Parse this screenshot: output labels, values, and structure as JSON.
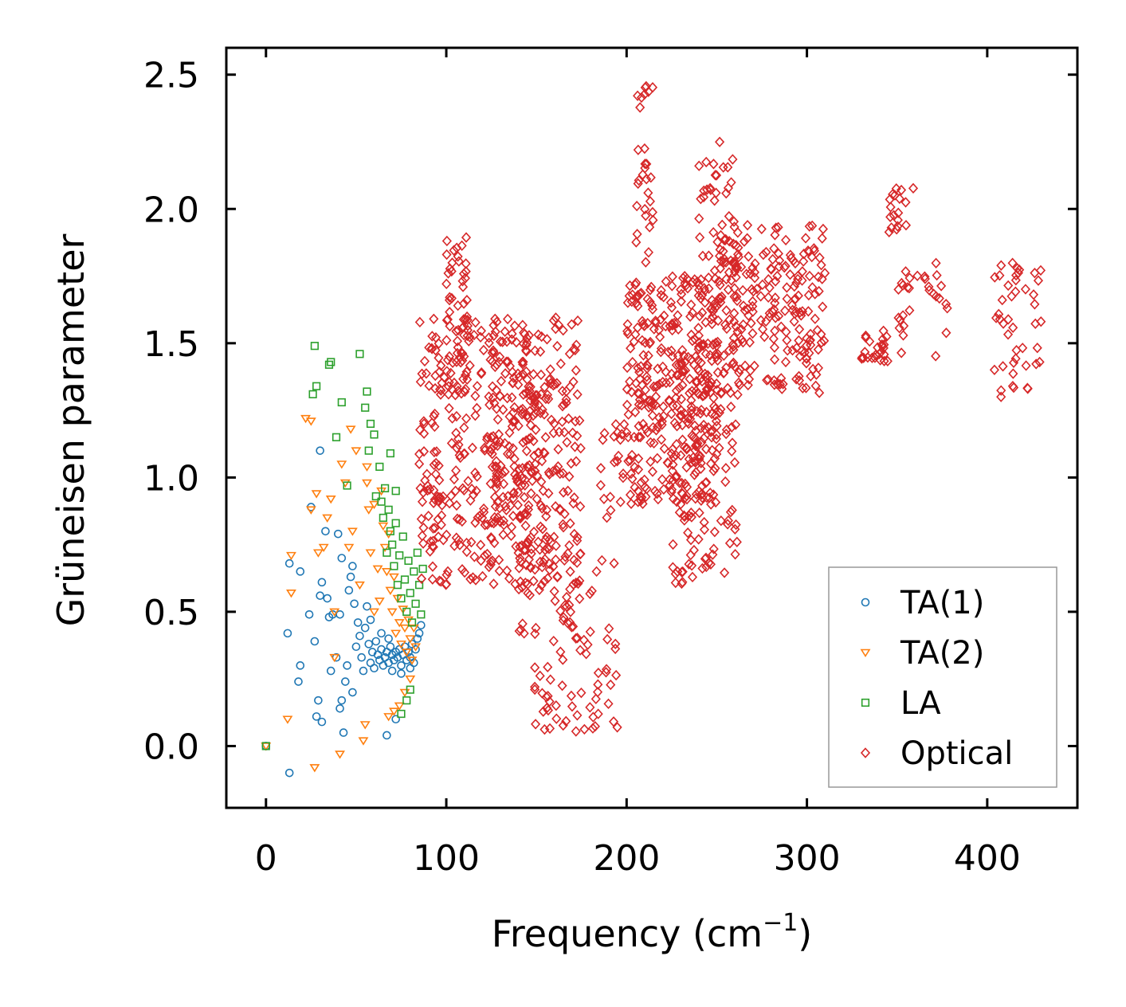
{
  "chart_data": {
    "type": "scatter",
    "title": "",
    "xlabel": "Frequency (cm",
    "xlabel_sup": "−1",
    "xlabel_close": ")",
    "ylabel": "Grüneisen parameter",
    "xlim": [
      -22,
      450
    ],
    "ylim": [
      -0.23,
      2.6
    ],
    "xticks": [
      0,
      100,
      200,
      300,
      400
    ],
    "yticks": [
      0.0,
      0.5,
      1.0,
      1.5,
      2.0,
      2.5
    ],
    "xtick_labels": [
      "0",
      "100",
      "200",
      "300",
      "400"
    ],
    "ytick_labels": [
      "0.0",
      "0.5",
      "1.0",
      "1.5",
      "2.0",
      "2.5"
    ],
    "legend_position": "lower-right",
    "series": [
      {
        "name": "TA(1)",
        "color": "#1f77b4",
        "marker": "circle",
        "points": [
          [
            0,
            0
          ],
          [
            13,
            -0.1
          ],
          [
            12,
            0.42
          ],
          [
            18,
            0.24
          ],
          [
            19,
            0.3
          ],
          [
            13,
            0.68
          ],
          [
            19,
            0.65
          ],
          [
            25,
            0.89
          ],
          [
            30,
            1.1
          ],
          [
            24,
            0.49
          ],
          [
            27,
            0.39
          ],
          [
            29,
            0.17
          ],
          [
            28,
            0.11
          ],
          [
            31,
            0.09
          ],
          [
            30,
            0.56
          ],
          [
            31,
            0.61
          ],
          [
            33,
            0.8
          ],
          [
            35,
            0.48
          ],
          [
            34,
            0.55
          ],
          [
            36,
            0.28
          ],
          [
            37,
            0.49
          ],
          [
            39,
            0.33
          ],
          [
            40,
            0.79
          ],
          [
            41,
            0.14
          ],
          [
            42,
            0.17
          ],
          [
            41,
            0.49
          ],
          [
            43,
            0.05
          ],
          [
            42,
            0.7
          ],
          [
            44,
            0.24
          ],
          [
            45,
            0.3
          ],
          [
            46,
            0.58
          ],
          [
            47,
            0.63
          ],
          [
            48,
            0.67
          ],
          [
            48,
            0.2
          ],
          [
            49,
            0.53
          ],
          [
            50,
            0.37
          ],
          [
            51,
            0.46
          ],
          [
            52,
            0.41
          ],
          [
            53,
            0.33
          ],
          [
            54,
            0.28
          ],
          [
            55,
            0.44
          ],
          [
            56,
            0.52
          ],
          [
            57,
            0.38
          ],
          [
            58,
            0.31
          ],
          [
            59,
            0.35
          ],
          [
            60,
            0.29
          ],
          [
            61,
            0.39
          ],
          [
            62,
            0.34
          ],
          [
            63,
            0.32
          ],
          [
            64,
            0.36
          ],
          [
            65,
            0.3
          ],
          [
            66,
            0.33
          ],
          [
            67,
            0.35
          ],
          [
            67,
            0.04
          ],
          [
            68,
            0.31
          ],
          [
            69,
            0.37
          ],
          [
            70,
            0.34
          ],
          [
            71,
            0.32
          ],
          [
            72,
            0.35
          ],
          [
            72,
            0.1
          ],
          [
            73,
            0.33
          ],
          [
            74,
            0.36
          ],
          [
            75,
            0.3
          ],
          [
            76,
            0.34
          ],
          [
            77,
            0.37
          ],
          [
            78,
            0.32
          ],
          [
            79,
            0.35
          ],
          [
            80,
            0.33
          ],
          [
            81,
            0.38
          ],
          [
            82,
            0.31
          ],
          [
            83,
            0.36
          ],
          [
            84,
            0.4
          ],
          [
            85,
            0.42
          ],
          [
            86,
            0.45
          ],
          [
            70,
            0.28
          ],
          [
            75,
            0.27
          ],
          [
            80,
            0.29
          ],
          [
            68,
            0.4
          ],
          [
            64,
            0.42
          ],
          [
            58,
            0.47
          ]
        ]
      },
      {
        "name": "TA(2)",
        "color": "#ff7f0e",
        "marker": "triangle",
        "points": [
          [
            0,
            0
          ],
          [
            12,
            0.1
          ],
          [
            14,
            0.71
          ],
          [
            14,
            0.57
          ],
          [
            22,
            1.22
          ],
          [
            25,
            1.21
          ],
          [
            27,
            -0.08
          ],
          [
            25,
            0.88
          ],
          [
            28,
            0.94
          ],
          [
            29,
            0.72
          ],
          [
            32,
            0.74
          ],
          [
            34,
            0.85
          ],
          [
            36,
            0.92
          ],
          [
            38,
            0.5
          ],
          [
            38,
            0.33
          ],
          [
            41,
            -0.03
          ],
          [
            42,
            1.05
          ],
          [
            44,
            0.98
          ],
          [
            46,
            0.74
          ],
          [
            47,
            1.18
          ],
          [
            48,
            0.8
          ],
          [
            50,
            1.1
          ],
          [
            52,
            0.6
          ],
          [
            54,
            0.02
          ],
          [
            55,
            0.08
          ],
          [
            56,
            0.98
          ],
          [
            57,
            0.88
          ],
          [
            58,
            0.72
          ],
          [
            60,
            0.5
          ],
          [
            62,
            0.66
          ],
          [
            63,
            0.54
          ],
          [
            64,
            0.95
          ],
          [
            66,
            0.74
          ],
          [
            67,
            0.65
          ],
          [
            68,
            0.79
          ],
          [
            69,
            0.58
          ],
          [
            70,
            0.5
          ],
          [
            71,
            0.63
          ],
          [
            72,
            0.42
          ],
          [
            73,
            0.55
          ],
          [
            74,
            0.46
          ],
          [
            75,
            0.38
          ],
          [
            76,
            0.51
          ],
          [
            77,
            0.44
          ],
          [
            78,
            0.35
          ],
          [
            79,
            0.47
          ],
          [
            80,
            0.4
          ],
          [
            81,
            0.32
          ],
          [
            82,
            0.44
          ],
          [
            83,
            0.37
          ],
          [
            68,
            0.11
          ],
          [
            71,
            0.13
          ],
          [
            74,
            0.15
          ],
          [
            77,
            0.2
          ],
          [
            80,
            0.25
          ],
          [
            65,
            0.82
          ],
          [
            60,
            0.9
          ],
          [
            56,
            1.04
          ]
        ]
      },
      {
        "name": "LA",
        "color": "#2ca02c",
        "marker": "square",
        "points": [
          [
            0,
            0
          ],
          [
            26,
            1.31
          ],
          [
            28,
            1.34
          ],
          [
            27,
            1.49
          ],
          [
            35,
            1.42
          ],
          [
            36,
            1.43
          ],
          [
            39,
            1.15
          ],
          [
            42,
            1.28
          ],
          [
            45,
            0.97
          ],
          [
            52,
            1.46
          ],
          [
            55,
            1.26
          ],
          [
            56,
            1.32
          ],
          [
            57,
            1.1
          ],
          [
            58,
            1.2
          ],
          [
            60,
            1.16
          ],
          [
            61,
            0.93
          ],
          [
            63,
            1.04
          ],
          [
            65,
            0.85
          ],
          [
            66,
            0.96
          ],
          [
            67,
            0.72
          ],
          [
            68,
            0.88
          ],
          [
            69,
            0.8
          ],
          [
            70,
            0.75
          ],
          [
            71,
            0.67
          ],
          [
            72,
            0.83
          ],
          [
            73,
            0.6
          ],
          [
            74,
            0.71
          ],
          [
            75,
            0.55
          ],
          [
            76,
            0.78
          ],
          [
            77,
            0.62
          ],
          [
            78,
            0.5
          ],
          [
            79,
            0.69
          ],
          [
            80,
            0.57
          ],
          [
            81,
            0.46
          ],
          [
            82,
            0.65
          ],
          [
            83,
            0.53
          ],
          [
            84,
            0.72
          ],
          [
            85,
            0.6
          ],
          [
            86,
            0.49
          ],
          [
            87,
            0.66
          ],
          [
            75,
            0.12
          ],
          [
            78,
            0.17
          ],
          [
            80,
            0.21
          ],
          [
            72,
            0.95
          ],
          [
            69,
            1.09
          ],
          [
            64,
            0.91
          ]
        ]
      },
      {
        "name": "Optical",
        "color": "#d62728",
        "marker": "diamond",
        "segments": [
          {
            "x": [
              85,
              175
            ],
            "y": [
              0.6,
              1.6
            ],
            "n": 420
          },
          {
            "x": [
              100,
              112
            ],
            "y": [
              1.3,
              1.92
            ],
            "n": 50
          },
          {
            "x": [
              125,
              150
            ],
            "y": [
              0.85,
              1.55
            ],
            "n": 80
          },
          {
            "x": [
              140,
              175
            ],
            "y": [
              0.4,
              1.35
            ],
            "n": 80
          },
          {
            "x": [
              147,
              165
            ],
            "y": [
              0.0,
              0.5
            ],
            "n": 25
          },
          {
            "x": [
              165,
              195
            ],
            "y": [
              0.05,
              0.7
            ],
            "n": 45
          },
          {
            "x": [
              185,
              200
            ],
            "y": [
              0.85,
              1.25
            ],
            "n": 20
          },
          {
            "x": [
              200,
              250
            ],
            "y": [
              0.9,
              1.75
            ],
            "n": 320
          },
          {
            "x": [
              205,
              215
            ],
            "y": [
              1.8,
              2.47
            ],
            "n": 30
          },
          {
            "x": [
              225,
              262
            ],
            "y": [
              0.6,
              1.5
            ],
            "n": 140
          },
          {
            "x": [
              240,
              262
            ],
            "y": [
              1.6,
              2.25
            ],
            "n": 50
          },
          {
            "x": [
              250,
              310
            ],
            "y": [
              1.3,
              1.95
            ],
            "n": 230
          },
          {
            "x": [
              330,
              345
            ],
            "y": [
              1.42,
              1.55
            ],
            "n": 25
          },
          {
            "x": [
              345,
              360
            ],
            "y": [
              1.9,
              2.08
            ],
            "n": 18
          },
          {
            "x": [
              350,
              378
            ],
            "y": [
              1.45,
              1.8
            ],
            "n": 30
          },
          {
            "x": [
              403,
              430
            ],
            "y": [
              1.3,
              1.8
            ],
            "n": 45
          }
        ]
      }
    ]
  }
}
